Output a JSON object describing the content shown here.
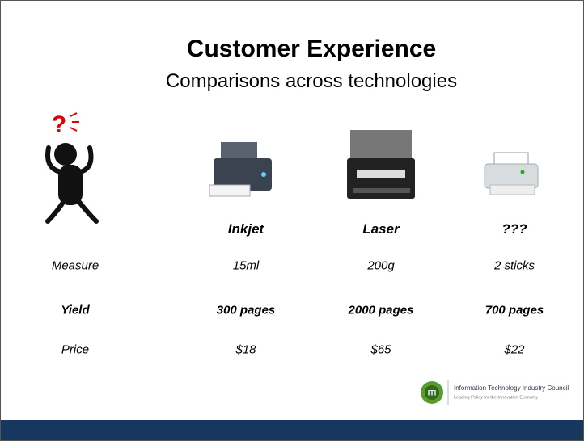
{
  "header": {
    "title": "Customer Experience",
    "subtitle": "Comparisons across technologies"
  },
  "table": {
    "columns": [
      "Inkjet",
      "Laser",
      "???"
    ],
    "rows": [
      {
        "label": "Measure",
        "cells": [
          "15ml",
          "200g",
          "2 sticks"
        ]
      },
      {
        "label": "Yield",
        "cells": [
          "300 pages",
          "2000 pages",
          "700 pages"
        ]
      },
      {
        "label": "Price",
        "cells": [
          "$18",
          "$65",
          "$22"
        ]
      }
    ]
  },
  "figure": {
    "mark": "?"
  },
  "logo": {
    "mark": "ITI",
    "name": "Information Technology Industry Council",
    "tagline": "Leading Policy for the Innovation Economy"
  }
}
